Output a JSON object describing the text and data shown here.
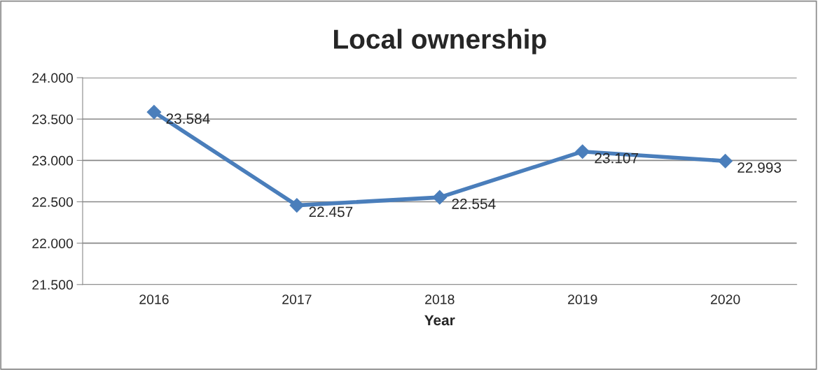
{
  "chart_data": {
    "type": "line",
    "title": "Local ownership",
    "xlabel": "Year",
    "categories": [
      "2016",
      "2017",
      "2018",
      "2019",
      "2020"
    ],
    "series": [
      {
        "color": "#4a7ebb",
        "values": [
          23.584,
          22.457,
          22.554,
          23.107,
          22.993
        ]
      }
    ],
    "ylim": [
      21.5,
      24
    ],
    "yticks": [
      {
        "value": 21.5,
        "label": "21.500"
      },
      {
        "value": 22,
        "label": "22.000"
      },
      {
        "value": 22.5,
        "label": "22.500"
      },
      {
        "value": 23,
        "label": "23.000"
      },
      {
        "value": 23.5,
        "label": "23.500"
      },
      {
        "value": 24,
        "label": "24.000"
      }
    ],
    "grid": "y",
    "legend": false,
    "marker": "diamond",
    "line_style": "solid",
    "data_labels": true
  }
}
